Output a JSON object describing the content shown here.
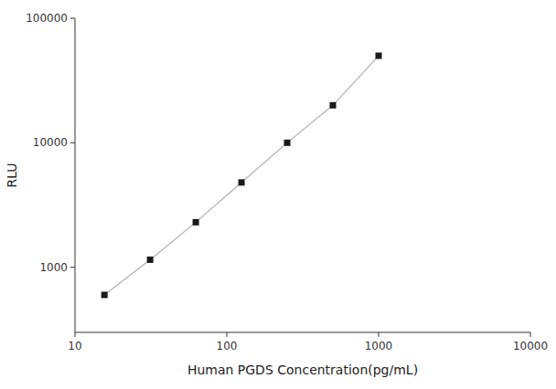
{
  "chart_data": {
    "type": "line",
    "xlabel": "Human PGDS Concentration(pg/mL)",
    "ylabel": "RLU",
    "x": [
      15.625,
      31.25,
      62.5,
      125,
      250,
      500,
      1000
    ],
    "values": [
      600,
      1150,
      2300,
      4800,
      10000,
      20000,
      50000
    ],
    "color": "#1a1a1a",
    "marker": "square",
    "line_style": "solid",
    "log": true,
    "grid": false,
    "xlim": [
      10,
      10000
    ],
    "ylim": [
      300,
      100000
    ],
    "xticks": [
      10,
      100,
      1000,
      10000
    ],
    "yticks": [
      1000,
      10000,
      100000
    ]
  }
}
